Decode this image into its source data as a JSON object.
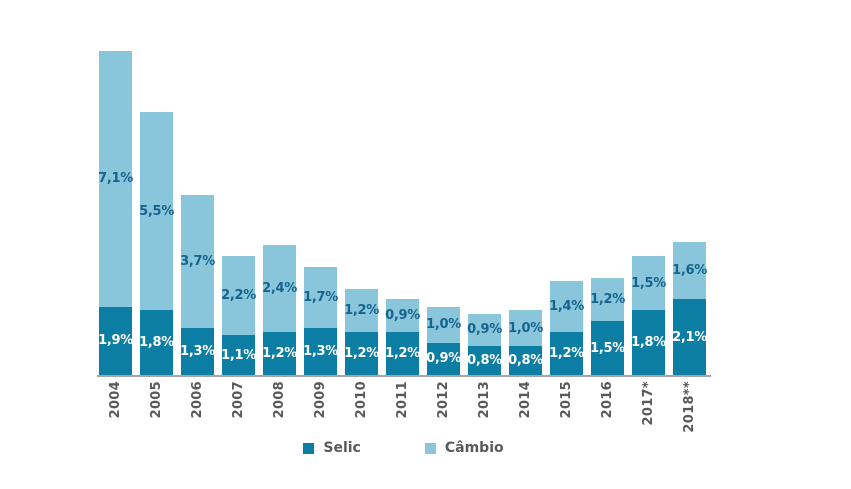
{
  "chart_data": {
    "type": "bar",
    "stacked": true,
    "title": "",
    "xlabel": "",
    "ylabel": "",
    "categories": [
      "2004",
      "2005",
      "2006",
      "2007",
      "2008",
      "2009",
      "2010",
      "2011",
      "2012",
      "2013",
      "2014",
      "2015",
      "2016",
      "2017*",
      "2018**"
    ],
    "series": [
      {
        "name": "Selic",
        "color": "#0d7ea3",
        "label_color": "#ffffff",
        "values": [
          1.9,
          1.8,
          1.3,
          1.1,
          1.2,
          1.3,
          1.2,
          1.2,
          0.9,
          0.8,
          0.8,
          1.2,
          1.5,
          1.8,
          2.1
        ],
        "labels": [
          "1,9%",
          "1,8%",
          "1,3%",
          "1,1%",
          "1,2%",
          "1,3%",
          "1,2%",
          "1,2%",
          "0,9%",
          "0,8%",
          "0,8%",
          "1,2%",
          "1,5%",
          "1,8%",
          "2,1%"
        ]
      },
      {
        "name": "Câmbio",
        "color": "#8ac6db",
        "label_color": "#16648c",
        "values": [
          7.1,
          5.5,
          3.7,
          2.2,
          2.4,
          1.7,
          1.2,
          0.9,
          1.0,
          0.9,
          1.0,
          1.4,
          1.2,
          1.5,
          1.6
        ],
        "labels": [
          "7,1%",
          "5,5%",
          "3,7%",
          "2,2%",
          "2,4%",
          "1,7%",
          "1,2%",
          "0,9%",
          "1,0%",
          "0,9%",
          "1,0%",
          "1,4%",
          "1,2%",
          "1,5%",
          "1,6%"
        ]
      }
    ],
    "totals": [
      9.0,
      7.3,
      5.0,
      3.3,
      3.6,
      3.0,
      2.4,
      2.1,
      1.9,
      1.7,
      1.8,
      2.6,
      2.7,
      3.3,
      3.7
    ],
    "ylim": [
      0,
      9.5
    ],
    "grid": false,
    "y_axis_visible": false,
    "legend_position": "bottom",
    "axis_line_color": "#a6a6a6",
    "tick_label_color": "#595959"
  }
}
